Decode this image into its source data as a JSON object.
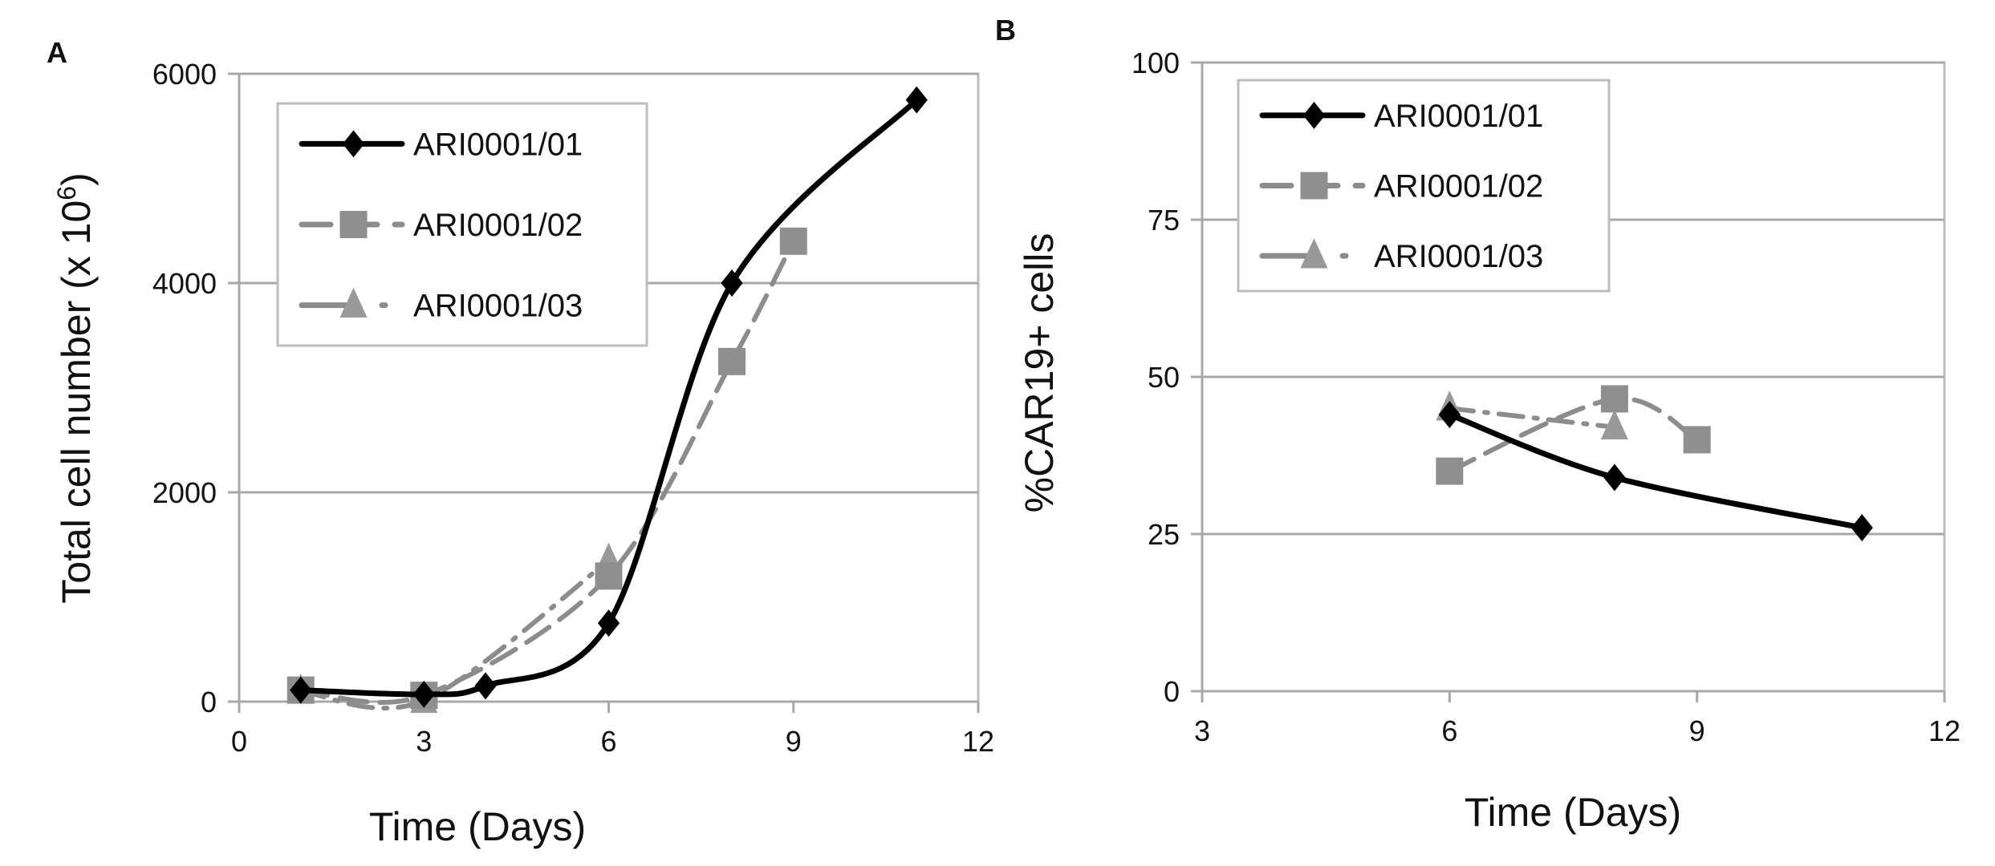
{
  "chart_data": [
    {
      "type": "line",
      "panel_label": "A",
      "xlabel": "Time (Days)",
      "ylabel": "Total cell number (x 10",
      "ylabel_superscript": "6",
      "ylabel_suffix": ")",
      "xlim": [
        0,
        12
      ],
      "ylim": [
        0,
        6000
      ],
      "xticks": [
        "0",
        "3",
        "6",
        "9",
        "12"
      ],
      "yticks": [
        "0",
        "2000",
        "4000",
        "6000"
      ],
      "grid": "horizontal",
      "legend_position": "top-left",
      "smoothed": true,
      "series": [
        {
          "name": "ARI0001/01",
          "color": "#000000",
          "marker": "diamond",
          "line": "solid",
          "x": [
            1,
            3,
            4,
            6,
            8,
            11
          ],
          "y": [
            110,
            70,
            150,
            750,
            4000,
            5750
          ]
        },
        {
          "name": "ARI0001/02",
          "color": "#8c8c8c",
          "marker": "square",
          "line": "dashed",
          "x": [
            1,
            3,
            6,
            8,
            9
          ],
          "y": [
            110,
            60,
            1200,
            3250,
            4400
          ]
        },
        {
          "name": "ARI0001/03",
          "color": "#8c8c8c",
          "marker": "triangle",
          "line": "dash-dot",
          "x": [
            1,
            3,
            6
          ],
          "y": [
            100,
            10,
            1350
          ]
        }
      ]
    },
    {
      "type": "line",
      "panel_label": "B",
      "xlabel": "Time (Days)",
      "ylabel": "%CAR19+ cells",
      "xlim": [
        3,
        12
      ],
      "ylim": [
        0,
        100
      ],
      "xticks": [
        "3",
        "6",
        "9",
        "12"
      ],
      "yticks": [
        "0",
        "25",
        "50",
        "75",
        "100"
      ],
      "grid": "horizontal",
      "legend_position": "top-left",
      "smoothed": true,
      "series": [
        {
          "name": "ARI0001/01",
          "color": "#000000",
          "marker": "diamond",
          "line": "solid",
          "x": [
            6,
            8,
            11
          ],
          "y": [
            44,
            34,
            26
          ]
        },
        {
          "name": "ARI0001/02",
          "color": "#8c8c8c",
          "marker": "square",
          "line": "dashed",
          "x": [
            6,
            8,
            9
          ],
          "y": [
            35,
            46.5,
            40
          ]
        },
        {
          "name": "ARI0001/03",
          "color": "#8c8c8c",
          "marker": "triangle",
          "line": "dash-dot",
          "x": [
            6,
            8
          ],
          "y": [
            45,
            42
          ]
        }
      ]
    }
  ]
}
